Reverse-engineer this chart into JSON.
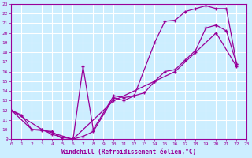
{
  "xlabel": "Windchill (Refroidissement éolien,°C)",
  "bg_color": "#cceeff",
  "line_color": "#990099",
  "grid_color": "#ffffff",
  "xlim": [
    0,
    23
  ],
  "ylim": [
    9,
    23
  ],
  "xticks": [
    0,
    1,
    2,
    3,
    4,
    5,
    6,
    7,
    8,
    9,
    10,
    11,
    12,
    13,
    14,
    15,
    16,
    17,
    18,
    19,
    20,
    21,
    22,
    23
  ],
  "yticks": [
    9,
    10,
    11,
    12,
    13,
    14,
    15,
    16,
    17,
    18,
    19,
    20,
    21,
    22,
    23
  ],
  "line1_x": [
    0,
    1,
    2,
    3,
    4,
    5,
    6,
    7,
    8,
    10,
    11,
    12,
    14,
    15,
    16,
    17,
    18,
    19,
    20,
    21,
    22
  ],
  "line1_y": [
    12,
    11.5,
    10,
    10,
    9.5,
    9.2,
    9.0,
    9.3,
    9.8,
    13.3,
    13.0,
    13.5,
    19.0,
    21.2,
    21.3,
    22.2,
    22.5,
    22.8,
    22.5,
    22.5,
    16.8
  ],
  "line2_x": [
    0,
    2,
    3,
    4,
    5,
    6,
    7,
    8,
    10,
    11,
    12,
    13,
    14,
    15,
    16,
    17,
    18,
    19,
    20,
    21,
    22
  ],
  "line2_y": [
    12,
    10.0,
    9.9,
    9.8,
    9.0,
    8.8,
    16.5,
    10.0,
    13.5,
    13.3,
    13.5,
    13.8,
    15.0,
    16.0,
    16.2,
    17.2,
    18.2,
    20.5,
    20.8,
    20.2,
    16.8
  ],
  "line3_x": [
    0,
    3,
    6,
    10,
    14,
    16,
    18,
    20,
    22
  ],
  "line3_y": [
    12,
    10,
    9.0,
    13.0,
    15.0,
    16.0,
    18.0,
    20.0,
    16.5
  ]
}
